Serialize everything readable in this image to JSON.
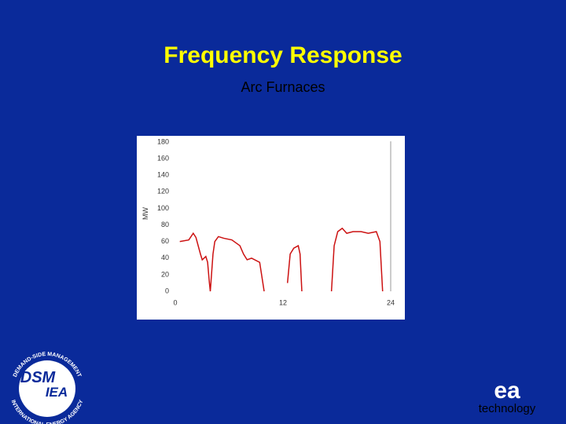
{
  "slide": {
    "title": "Frequency Response",
    "subtitle": "Arc Furnaces"
  },
  "logos": {
    "dsm": "DSM",
    "iea": "IEA",
    "ring_top": "DEMAND-SIDE MANAGEMENT",
    "ring_bottom": "INTERNATIONAL ENERGY AGENCY",
    "ea": "ea",
    "ea_caption": "technology"
  },
  "chart_data": {
    "type": "line",
    "ylabel": "MW",
    "x": [
      0.5,
      1.5,
      2.0,
      2.3,
      2.8,
      3.0,
      3.4,
      3.6,
      3.8,
      3.9,
      4.2,
      4.4,
      4.8,
      5.4,
      6.3,
      7.2,
      7.6,
      8.0,
      8.5,
      9.4,
      9.9,
      11.0,
      12.5,
      12.8,
      13.2,
      13.7,
      13.9,
      14.1,
      16.0,
      17.4,
      17.7,
      18.1,
      18.6,
      19.1,
      19.8,
      20.7,
      21.5,
      22.4,
      22.8,
      23.1
    ],
    "series": [
      {
        "name": "MW",
        "color": "#cc1111",
        "values": [
          60,
          62,
          70,
          65,
          45,
          38,
          42,
          35,
          10,
          0,
          45,
          60,
          66,
          64,
          62,
          55,
          45,
          38,
          40,
          35,
          0,
          null,
          10,
          45,
          52,
          55,
          45,
          0,
          null,
          0,
          55,
          72,
          76,
          70,
          72,
          72,
          70,
          72,
          60,
          0
        ]
      }
    ],
    "xlim": [
      0,
      24
    ],
    "xticks": [
      0,
      12,
      24
    ],
    "ylim": [
      0,
      180
    ],
    "yticks": [
      0,
      20,
      40,
      60,
      80,
      100,
      120,
      140,
      160,
      180
    ]
  }
}
